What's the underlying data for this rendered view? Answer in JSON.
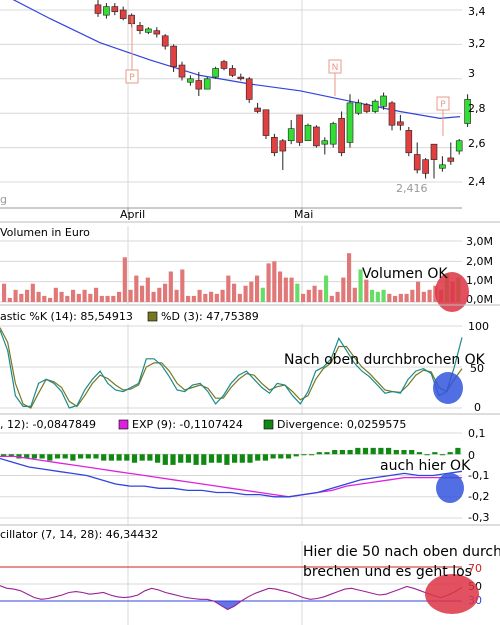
{
  "price_panel": {
    "y_ticks": [
      "3,4",
      "3,2",
      "3",
      "2,8",
      "2,6",
      "2,4"
    ],
    "x_labels": [
      "April",
      "Mai"
    ],
    "low_annotation": "2,416",
    "signal_markers": [
      "P",
      "N",
      "P"
    ],
    "watermark_fragment": "g"
  },
  "volume_panel": {
    "label": "Volumen in Euro",
    "y_ticks": [
      "3,0M",
      "2,0M",
      "1,0M",
      "0,0M"
    ],
    "note": "Volumen OK"
  },
  "stochastic_panel": {
    "k_label": "astic %K (14): 85,54913",
    "d_label": "%D (3): 47,75389",
    "y_ticks": [
      "100",
      "50",
      "0"
    ],
    "note": "Nach oben durchbrochen OK"
  },
  "macd_panel": {
    "macd_label": ", 12): -0,0847849",
    "exp_label": "EXP (9): -0,1107424",
    "div_label": "Divergence: 0,0259575",
    "y_ticks": [
      "0,1",
      "0",
      "-0,1",
      "-0,2",
      "-0,3"
    ],
    "note": "auch hier OK"
  },
  "osc_panel": {
    "label": "cillator (7, 14, 28): 46,34432",
    "y_ticks": [
      "70",
      "50",
      "30"
    ],
    "note_line1": "Hier die 50 nach oben durch-",
    "note_line2": "brechen und es geht los"
  },
  "colors": {
    "up": "#33dd33",
    "down": "#e04040",
    "volume_down": "#e07878",
    "volume_up": "#66dd66",
    "ma": "#3344dd",
    "stoch_k": "#1a8a8a",
    "stoch_d": "#777722",
    "macd_line": "#3344dd",
    "exp_line": "#dd22dd",
    "divergence": "#118811",
    "osc_line": "#992299",
    "highlight_red": "#dd3344",
    "highlight_blue": "#3355dd",
    "signal_marker": "#e89a8a"
  },
  "chart_data": [
    {
      "type": "candlestick",
      "ylim": [
        2.35,
        3.45
      ],
      "y_ticks": [
        3.4,
        3.2,
        3.0,
        2.8,
        2.6,
        2.4
      ],
      "x_labels": [
        "April",
        "Mai"
      ],
      "ohlc": [
        [
          3.43,
          3.48,
          3.36,
          3.38
        ],
        [
          3.37,
          3.44,
          3.35,
          3.42
        ],
        [
          3.42,
          3.44,
          3.37,
          3.39
        ],
        [
          3.4,
          3.42,
          3.34,
          3.35
        ],
        [
          3.37,
          3.38,
          3.3,
          3.32
        ],
        [
          3.31,
          3.33,
          3.26,
          3.28
        ],
        [
          3.27,
          3.3,
          3.26,
          3.29
        ],
        [
          3.28,
          3.3,
          3.24,
          3.26
        ],
        [
          3.25,
          3.26,
          3.17,
          3.19
        ],
        [
          3.19,
          3.2,
          3.04,
          3.07
        ],
        [
          3.08,
          3.1,
          2.99,
          3.01
        ],
        [
          2.98,
          3.02,
          2.96,
          3.0
        ],
        [
          2.99,
          3.04,
          2.9,
          2.94
        ],
        [
          2.94,
          3.01,
          2.94,
          3.0
        ],
        [
          3.01,
          3.07,
          3.0,
          3.06
        ],
        [
          3.1,
          3.11,
          3.05,
          3.06
        ],
        [
          3.06,
          3.08,
          3.01,
          3.02
        ],
        [
          3.01,
          3.03,
          2.99,
          3.0
        ],
        [
          3.0,
          3.01,
          2.86,
          2.88
        ],
        [
          2.83,
          2.86,
          2.8,
          2.81
        ],
        [
          2.82,
          2.82,
          2.65,
          2.67
        ],
        [
          2.66,
          2.68,
          2.55,
          2.57
        ],
        [
          2.64,
          2.65,
          2.47,
          2.58
        ],
        [
          2.64,
          2.76,
          2.62,
          2.71
        ],
        [
          2.79,
          2.79,
          2.61,
          2.63
        ],
        [
          2.64,
          2.74,
          2.64,
          2.73
        ],
        [
          2.72,
          2.73,
          2.6,
          2.61
        ],
        [
          2.62,
          2.66,
          2.56,
          2.64
        ],
        [
          2.62,
          2.75,
          2.6,
          2.74
        ],
        [
          2.77,
          2.81,
          2.55,
          2.57
        ],
        [
          2.63,
          2.91,
          2.6,
          2.86
        ],
        [
          2.8,
          2.88,
          2.79,
          2.86
        ],
        [
          2.85,
          2.86,
          2.8,
          2.81
        ],
        [
          2.81,
          2.88,
          2.8,
          2.87
        ],
        [
          2.84,
          2.92,
          2.82,
          2.9
        ],
        [
          2.86,
          2.87,
          2.7,
          2.73
        ],
        [
          2.75,
          2.79,
          2.7,
          2.73
        ],
        [
          2.7,
          2.72,
          2.55,
          2.57
        ],
        [
          2.56,
          2.63,
          2.45,
          2.47
        ],
        [
          2.53,
          2.54,
          2.42,
          2.45
        ],
        [
          2.62,
          2.62,
          2.42,
          2.53
        ],
        [
          2.48,
          2.55,
          2.46,
          2.5
        ],
        [
          2.54,
          2.63,
          2.5,
          2.52
        ],
        [
          2.58,
          2.65,
          2.56,
          2.64
        ],
        [
          2.74,
          2.91,
          2.72,
          2.88
        ]
      ],
      "moving_average": [
        [
          0,
          3.5
        ],
        [
          50,
          3.35
        ],
        [
          100,
          3.21
        ],
        [
          150,
          3.11
        ],
        [
          200,
          3.02
        ],
        [
          250,
          2.97
        ],
        [
          300,
          2.93
        ],
        [
          350,
          2.87
        ],
        [
          400,
          2.81
        ],
        [
          440,
          2.77
        ],
        [
          460,
          2.78
        ]
      ],
      "low_annotation_value": 2.416
    },
    {
      "type": "bar",
      "title": "Volumen in Euro",
      "y_ticks": [
        "3,0M",
        "2,0M",
        "1,0M",
        "0,0M"
      ],
      "ylim": [
        0,
        3.0
      ],
      "values": [
        0.9,
        0.2,
        0.6,
        0.4,
        0.6,
        0.9,
        0.5,
        0.3,
        0.2,
        0.7,
        0.5,
        0.3,
        0.6,
        0.4,
        0.6,
        0.4,
        0.7,
        0.3,
        0.3,
        0.3,
        0.5,
        2.2,
        0.6,
        1.3,
        0.8,
        1.2,
        0.5,
        0.7,
        0.9,
        1.5,
        0.6,
        1.6,
        0.3,
        0.3,
        0.6,
        0.4,
        0.5,
        0.4,
        0.6,
        1.3,
        0.9,
        0.4,
        0.8,
        1.0,
        1.3,
        0.7,
        1.9,
        2.0,
        1.5,
        1.2,
        1.2,
        0.9,
        0.4,
        0.6,
        0.8,
        0.6,
        1.3,
        0.3,
        0.5,
        1.2,
        2.4,
        0.7,
        1.6,
        1.1,
        0.6,
        0.5,
        0.6,
        0.4,
        0.3,
        0.4,
        0.4,
        0.6,
        1.0,
        0.5,
        0.6,
        0.8,
        0.6,
        1.4,
        1.0,
        1.2
      ],
      "up_flags": [
        0,
        0,
        0,
        0,
        0,
        0,
        0,
        0,
        0,
        0,
        0,
        0,
        0,
        0,
        0,
        0,
        0,
        0,
        0,
        0,
        0,
        0,
        0,
        0,
        0,
        0,
        0,
        0,
        0,
        0,
        0,
        0,
        0,
        0,
        0,
        0,
        0,
        0,
        0,
        0,
        0,
        0,
        0,
        0,
        0,
        1,
        0,
        0,
        0,
        0,
        0,
        1,
        0,
        0,
        0,
        0,
        1,
        0,
        0,
        0,
        0,
        0,
        1,
        0,
        1,
        1,
        1,
        0,
        0,
        0,
        0,
        0,
        0,
        0,
        0,
        0,
        0,
        1,
        0,
        1
      ]
    },
    {
      "type": "line",
      "title": "astic %K (14)",
      "ylim": [
        0,
        100
      ],
      "y_ticks": [
        100,
        50,
        0
      ],
      "series": [
        {
          "name": "%K (14)",
          "values": [
            95,
            70,
            15,
            2,
            2,
            30,
            35,
            30,
            20,
            0,
            3,
            22,
            35,
            45,
            30,
            22,
            20,
            25,
            30,
            60,
            60,
            52,
            38,
            22,
            20,
            28,
            30,
            20,
            5,
            15,
            30,
            40,
            45,
            35,
            25,
            18,
            30,
            28,
            15,
            5,
            20,
            45,
            50,
            60,
            85,
            70,
            55,
            45,
            38,
            28,
            18,
            20,
            18,
            35,
            45,
            48,
            42,
            15,
            20,
            50,
            86
          ]
        },
        {
          "name": "%D (3)",
          "values": [
            98,
            80,
            30,
            5,
            0,
            18,
            35,
            32,
            25,
            8,
            2,
            15,
            30,
            40,
            36,
            28,
            22,
            23,
            28,
            50,
            55,
            55,
            45,
            30,
            22,
            25,
            28,
            24,
            12,
            12,
            25,
            35,
            42,
            40,
            30,
            22,
            26,
            28,
            20,
            10,
            15,
            35,
            48,
            55,
            75,
            75,
            62,
            50,
            42,
            32,
            22,
            20,
            19,
            28,
            40,
            46,
            44,
            25,
            20,
            35,
            48
          ]
        }
      ]
    },
    {
      "type": "bar+line",
      "title": "MACD",
      "ylim": [
        -0.3,
        0.1
      ],
      "y_ticks": [
        0.1,
        0,
        -0.1,
        -0.2,
        -0.3
      ],
      "series": [
        {
          "name": "MACD",
          "values": [
            -0.02,
            -0.04,
            -0.06,
            -0.07,
            -0.08,
            -0.09,
            -0.1,
            -0.12,
            -0.14,
            -0.15,
            -0.15,
            -0.16,
            -0.16,
            -0.17,
            -0.17,
            -0.18,
            -0.18,
            -0.19,
            -0.19,
            -0.2,
            -0.2,
            -0.19,
            -0.18,
            -0.16,
            -0.14,
            -0.12,
            -0.11,
            -0.1,
            -0.09,
            -0.1,
            -0.1,
            -0.09,
            -0.08
          ]
        },
        {
          "name": "EXP (9)",
          "values": [
            -0.01,
            -0.01,
            -0.02,
            -0.03,
            -0.04,
            -0.05,
            -0.06,
            -0.07,
            -0.08,
            -0.09,
            -0.1,
            -0.11,
            -0.12,
            -0.13,
            -0.14,
            -0.15,
            -0.16,
            -0.17,
            -0.18,
            -0.19,
            -0.2,
            -0.19,
            -0.18,
            -0.17,
            -0.15,
            -0.14,
            -0.13,
            -0.12,
            -0.11,
            -0.11,
            -0.11,
            -0.11,
            -0.11
          ]
        }
      ],
      "divergence": [
        -0.01,
        -0.01,
        -0.02,
        -0.02,
        -0.02,
        -0.02,
        -0.03,
        -0.02,
        -0.02,
        -0.03,
        -0.02,
        -0.02,
        -0.02,
        -0.03,
        -0.03,
        -0.03,
        -0.03,
        -0.04,
        -0.03,
        -0.03,
        -0.04,
        -0.05,
        -0.05,
        -0.04,
        -0.04,
        -0.05,
        -0.05,
        -0.04,
        -0.04,
        -0.05,
        -0.04,
        -0.04,
        -0.04,
        -0.03,
        -0.03,
        -0.02,
        -0.02,
        -0.02,
        -0.01,
        0.0,
        0.0,
        0.01,
        0.01,
        0.02,
        0.02,
        0.02,
        0.03,
        0.03,
        0.03,
        0.03,
        0.03,
        0.02,
        0.02,
        0.02,
        0.01,
        0.0,
        0.01,
        0.0,
        0.01,
        0.03
      ]
    },
    {
      "type": "line",
      "title": "cillator (7, 14, 28)",
      "ylim": [
        15,
        85
      ],
      "y_ticks": [
        70,
        50,
        30
      ],
      "reference_lines": [
        70,
        30
      ],
      "values": [
        48,
        45,
        44,
        42,
        38,
        34,
        32,
        33,
        35,
        37,
        40,
        41,
        40,
        38,
        39,
        40,
        37,
        35,
        34,
        35,
        37,
        42,
        45,
        43,
        40,
        38,
        36,
        34,
        33,
        32,
        32,
        30,
        25,
        20,
        24,
        30,
        35,
        39,
        42,
        45,
        44,
        42,
        40,
        37,
        34,
        32,
        33,
        35,
        38,
        41,
        44,
        45,
        43,
        41,
        39,
        37,
        38,
        41,
        44,
        47,
        45,
        42,
        39,
        36,
        34,
        37,
        41,
        46
      ]
    }
  ]
}
